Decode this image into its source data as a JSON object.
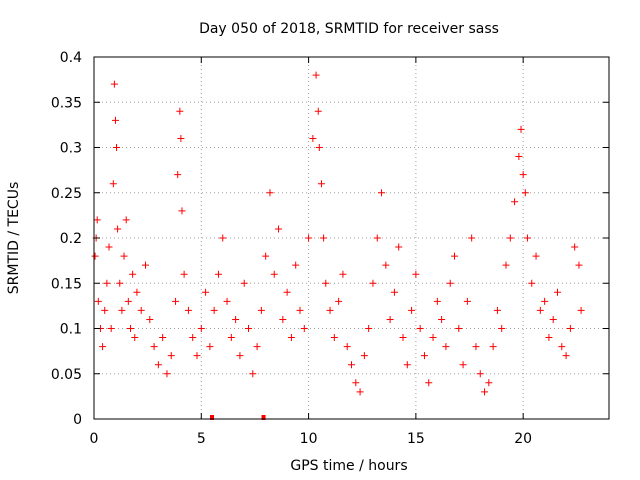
{
  "chart_data": {
    "type": "scatter",
    "title": "Day 050 of 2018, SRMTID for receiver sass",
    "xlabel": "GPS time / hours",
    "ylabel": "SRMTID / TECUs",
    "xlim": [
      0,
      24
    ],
    "ylim": [
      0,
      0.4
    ],
    "xticks": [
      0,
      5,
      10,
      15,
      20
    ],
    "xtick_labels": [
      "0",
      "5",
      "10",
      "15",
      "20"
    ],
    "yticks": [
      0,
      0.05,
      0.1,
      0.15,
      0.2,
      0.25,
      0.3,
      0.35,
      0.4
    ],
    "ytick_labels": [
      "0",
      "0.05",
      "0.1",
      "0.15",
      "0.2",
      "0.25",
      "0.3",
      "0.35",
      "0.4"
    ],
    "grid": true,
    "marker": "+",
    "color": "#ff0000",
    "gap_markers": [
      5.5,
      7.9
    ],
    "series": [
      {
        "name": "SRMTID",
        "points": [
          [
            0.05,
            0.18
          ],
          [
            0.1,
            0.2
          ],
          [
            0.15,
            0.22
          ],
          [
            0.2,
            0.13
          ],
          [
            0.3,
            0.1
          ],
          [
            0.4,
            0.08
          ],
          [
            0.5,
            0.12
          ],
          [
            0.6,
            0.15
          ],
          [
            0.7,
            0.19
          ],
          [
            0.8,
            0.1
          ],
          [
            0.9,
            0.26
          ],
          [
            0.95,
            0.37
          ],
          [
            1.0,
            0.33
          ],
          [
            1.05,
            0.3
          ],
          [
            1.1,
            0.21
          ],
          [
            1.2,
            0.15
          ],
          [
            1.3,
            0.12
          ],
          [
            1.4,
            0.18
          ],
          [
            1.5,
            0.22
          ],
          [
            1.6,
            0.13
          ],
          [
            1.7,
            0.1
          ],
          [
            1.8,
            0.16
          ],
          [
            1.9,
            0.09
          ],
          [
            2.0,
            0.14
          ],
          [
            2.2,
            0.12
          ],
          [
            2.4,
            0.17
          ],
          [
            2.6,
            0.11
          ],
          [
            2.8,
            0.08
          ],
          [
            3.0,
            0.06
          ],
          [
            3.2,
            0.09
          ],
          [
            3.4,
            0.05
          ],
          [
            3.6,
            0.07
          ],
          [
            3.8,
            0.13
          ],
          [
            3.9,
            0.27
          ],
          [
            4.0,
            0.34
          ],
          [
            4.05,
            0.31
          ],
          [
            4.1,
            0.23
          ],
          [
            4.2,
            0.16
          ],
          [
            4.4,
            0.12
          ],
          [
            4.6,
            0.09
          ],
          [
            4.8,
            0.07
          ],
          [
            5.0,
            0.1
          ],
          [
            5.2,
            0.14
          ],
          [
            5.4,
            0.08
          ],
          [
            5.6,
            0.12
          ],
          [
            5.8,
            0.16
          ],
          [
            6.0,
            0.2
          ],
          [
            6.2,
            0.13
          ],
          [
            6.4,
            0.09
          ],
          [
            6.6,
            0.11
          ],
          [
            6.8,
            0.07
          ],
          [
            7.0,
            0.15
          ],
          [
            7.2,
            0.1
          ],
          [
            7.4,
            0.05
          ],
          [
            7.6,
            0.08
          ],
          [
            7.8,
            0.12
          ],
          [
            8.0,
            0.18
          ],
          [
            8.2,
            0.25
          ],
          [
            8.4,
            0.16
          ],
          [
            8.6,
            0.21
          ],
          [
            8.8,
            0.11
          ],
          [
            9.0,
            0.14
          ],
          [
            9.2,
            0.09
          ],
          [
            9.4,
            0.17
          ],
          [
            9.6,
            0.12
          ],
          [
            9.8,
            0.1
          ],
          [
            10.0,
            0.2
          ],
          [
            10.2,
            0.31
          ],
          [
            10.35,
            0.38
          ],
          [
            10.45,
            0.34
          ],
          [
            10.5,
            0.3
          ],
          [
            10.6,
            0.26
          ],
          [
            10.7,
            0.2
          ],
          [
            10.8,
            0.15
          ],
          [
            11.0,
            0.12
          ],
          [
            11.2,
            0.09
          ],
          [
            11.4,
            0.13
          ],
          [
            11.6,
            0.16
          ],
          [
            11.8,
            0.08
          ],
          [
            12.0,
            0.06
          ],
          [
            12.2,
            0.04
          ],
          [
            12.4,
            0.03
          ],
          [
            12.6,
            0.07
          ],
          [
            12.8,
            0.1
          ],
          [
            13.0,
            0.15
          ],
          [
            13.2,
            0.2
          ],
          [
            13.4,
            0.25
          ],
          [
            13.6,
            0.17
          ],
          [
            13.8,
            0.11
          ],
          [
            14.0,
            0.14
          ],
          [
            14.2,
            0.19
          ],
          [
            14.4,
            0.09
          ],
          [
            14.6,
            0.06
          ],
          [
            14.8,
            0.12
          ],
          [
            15.0,
            0.16
          ],
          [
            15.2,
            0.1
          ],
          [
            15.4,
            0.07
          ],
          [
            15.6,
            0.04
          ],
          [
            15.8,
            0.09
          ],
          [
            16.0,
            0.13
          ],
          [
            16.2,
            0.11
          ],
          [
            16.4,
            0.08
          ],
          [
            16.6,
            0.15
          ],
          [
            16.8,
            0.18
          ],
          [
            17.0,
            0.1
          ],
          [
            17.2,
            0.06
          ],
          [
            17.4,
            0.13
          ],
          [
            17.6,
            0.2
          ],
          [
            17.8,
            0.08
          ],
          [
            18.0,
            0.05
          ],
          [
            18.2,
            0.03
          ],
          [
            18.4,
            0.04
          ],
          [
            18.6,
            0.08
          ],
          [
            18.8,
            0.12
          ],
          [
            19.0,
            0.1
          ],
          [
            19.2,
            0.17
          ],
          [
            19.4,
            0.2
          ],
          [
            19.6,
            0.24
          ],
          [
            19.8,
            0.29
          ],
          [
            19.9,
            0.32
          ],
          [
            20.0,
            0.27
          ],
          [
            20.1,
            0.25
          ],
          [
            20.2,
            0.2
          ],
          [
            20.4,
            0.15
          ],
          [
            20.6,
            0.18
          ],
          [
            20.8,
            0.12
          ],
          [
            21.0,
            0.13
          ],
          [
            21.2,
            0.09
          ],
          [
            21.4,
            0.11
          ],
          [
            21.6,
            0.14
          ],
          [
            21.8,
            0.08
          ],
          [
            22.0,
            0.07
          ],
          [
            22.2,
            0.1
          ],
          [
            22.4,
            0.19
          ],
          [
            22.6,
            0.17
          ],
          [
            22.7,
            0.12
          ]
        ]
      }
    ]
  }
}
